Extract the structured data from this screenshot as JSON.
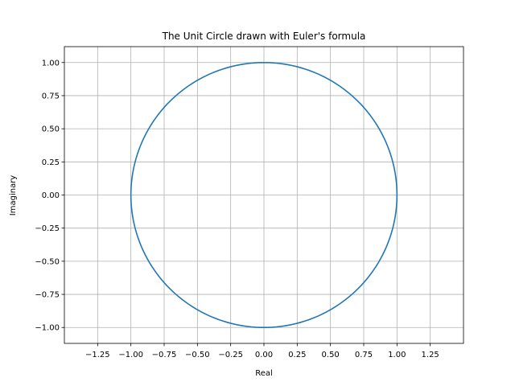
{
  "chart_data": {
    "type": "line",
    "title": "The Unit Circle drawn with Euler's formula",
    "xlabel": "Real",
    "ylabel": "Imaginary",
    "xlim": [
      -1.5,
      1.5
    ],
    "ylim": [
      -1.12,
      1.12
    ],
    "xticks": [
      -1.25,
      -1.0,
      -0.75,
      -0.5,
      -0.25,
      0.0,
      0.25,
      0.5,
      0.75,
      1.0,
      1.25
    ],
    "xtick_labels": [
      "−1.25",
      "−1.00",
      "−0.75",
      "−0.50",
      "−0.25",
      "0.00",
      "0.25",
      "0.50",
      "0.75",
      "1.00",
      "1.25"
    ],
    "yticks": [
      1.0,
      0.75,
      0.5,
      0.25,
      0.0,
      -0.25,
      -0.5,
      -0.75,
      -1.0
    ],
    "ytick_labels": [
      "1.00",
      "0.75",
      "0.50",
      "0.25",
      "0.00",
      "−0.25",
      "−0.50",
      "−0.75",
      "−1.00"
    ],
    "grid": true,
    "aspect": "equal",
    "series": [
      {
        "color": "#1f77b4",
        "curve": "unit-circle",
        "x": [
          1.0,
          0.966,
          0.866,
          0.707,
          0.5,
          0.259,
          0.0,
          -0.259,
          -0.5,
          -0.707,
          -0.866,
          -0.966,
          -1.0,
          -0.966,
          -0.866,
          -0.707,
          -0.5,
          -0.259,
          0.0,
          0.259,
          0.5,
          0.707,
          0.866,
          0.966,
          1.0
        ],
        "y": [
          0.0,
          0.259,
          0.5,
          0.707,
          0.866,
          0.966,
          1.0,
          0.966,
          0.866,
          0.707,
          0.5,
          0.259,
          0.0,
          -0.259,
          -0.5,
          -0.707,
          -0.866,
          -0.966,
          -1.0,
          -0.966,
          -0.866,
          -0.707,
          -0.5,
          -0.259,
          0.0
        ]
      }
    ]
  },
  "colors": {
    "line": "#1f77b4",
    "grid": "#b0b0b0",
    "axes": "#000000"
  }
}
